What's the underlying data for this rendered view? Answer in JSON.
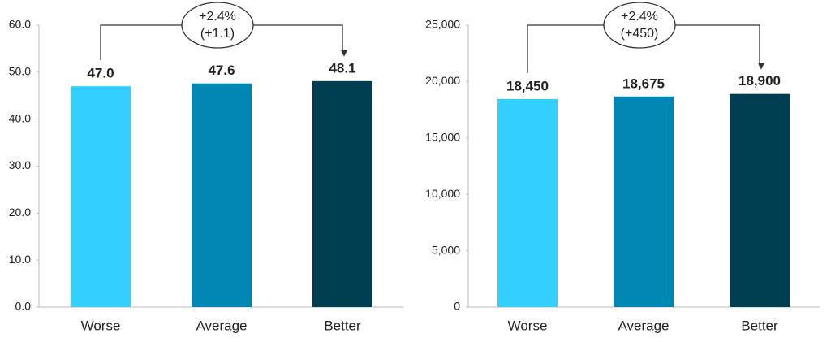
{
  "chart_data": [
    {
      "type": "bar",
      "categories": [
        "Worse",
        "Average",
        "Better"
      ],
      "values": [
        47.0,
        47.6,
        48.1
      ],
      "value_labels": [
        "47.0",
        "47.6",
        "48.1"
      ],
      "colors": [
        "#33cfff",
        "#0086b3",
        "#003f52"
      ],
      "ylim": [
        0,
        60
      ],
      "yticks": [
        {
          "value": 0,
          "label": "0.0"
        },
        {
          "value": 10,
          "label": "10.0"
        },
        {
          "value": 20,
          "label": "20.0"
        },
        {
          "value": 30,
          "label": "30.0"
        },
        {
          "value": 40,
          "label": "40.0"
        },
        {
          "value": 50,
          "label": "50.0"
        },
        {
          "value": 60,
          "label": "60.0"
        }
      ],
      "annotation": [
        "+2.4%",
        "(+1.1)"
      ]
    },
    {
      "type": "bar",
      "categories": [
        "Worse",
        "Average",
        "Better"
      ],
      "values": [
        18450,
        18675,
        18900
      ],
      "value_labels": [
        "18,450",
        "18,675",
        "18,900"
      ],
      "colors": [
        "#33cfff",
        "#0086b3",
        "#003f52"
      ],
      "ylim": [
        0,
        25000
      ],
      "yticks": [
        0,
        {
          "value": 5000,
          "label": "5,000"
        },
        {
          "value": 10000,
          "label": "10,000"
        },
        {
          "value": 15000,
          "label": "15,000"
        },
        {
          "value": 20000,
          "label": "20,000"
        },
        {
          "value": 25000,
          "label": "25,000"
        }
      ],
      "annotation": [
        "+2.4%",
        "(+450)"
      ]
    }
  ]
}
